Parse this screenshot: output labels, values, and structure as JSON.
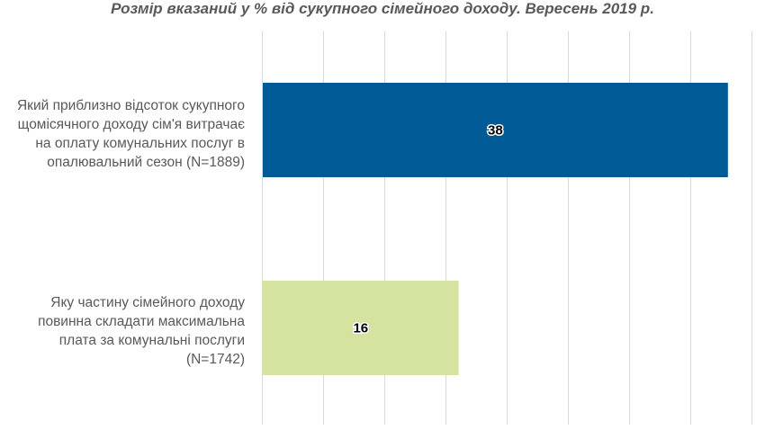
{
  "chart_data": {
    "type": "bar",
    "orientation": "horizontal",
    "title": "Розмір вказаний у % від сукупного сімейного доходу. Вересень 2019 р.",
    "categories": [
      "Який приблизно відсоток сукупного щомісячного доходу сім'я витрачає на оплату комунальних послуг в опалювальний сезон (N=1889)",
      "Яку частину сімейного доходу повинна складати максимальна плата за комунальні послуги (N=1742)"
    ],
    "category_lines": [
      [
        "Який приблизно відсоток сукупного",
        "щомісячного доходу сім'я витрачає",
        "на оплату комунальних послуг в",
        "опалювальний сезон (N=1889)"
      ],
      [
        "Яку частину сімейного доходу",
        "повинна складати максимальна",
        "плата за комунальні послуги",
        "(N=1742)"
      ]
    ],
    "values": [
      38,
      16
    ],
    "data_labels": [
      "38",
      "16"
    ],
    "colors": [
      "#005A96",
      "#D4E39F"
    ],
    "xlim": [
      0,
      40
    ],
    "grid_step": 5,
    "grid": true,
    "xlabel": "",
    "ylabel": ""
  }
}
